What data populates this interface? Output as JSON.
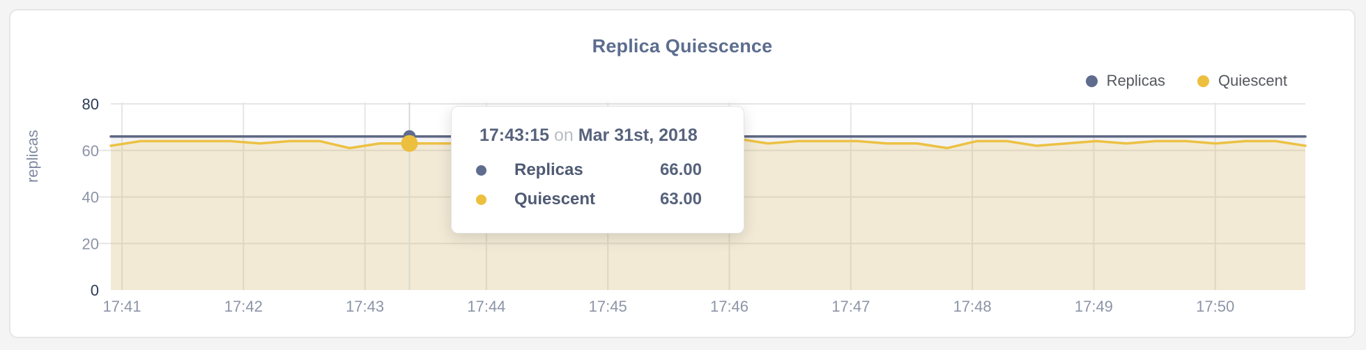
{
  "theme": {
    "page_background": "#f4f4f5",
    "card_background": "#ffffff",
    "grid_color": "#e6e6e4",
    "crosshair_color": "#d8d8d6",
    "axis_label_minor": "#8b94a7",
    "axis_label_major": "#2b3a55",
    "title_color": "#5c6d8e"
  },
  "chart_data": {
    "type": "area",
    "title": "Replica Quiescence",
    "ylabel": "replicas",
    "ylim": [
      0,
      80
    ],
    "grid": true,
    "legend_position": "top-right",
    "y_ticks": [
      {
        "label": "0",
        "value": 0,
        "major": true
      },
      {
        "label": "20",
        "value": 20,
        "major": false
      },
      {
        "label": "40",
        "value": 40,
        "major": false
      },
      {
        "label": "60",
        "value": 60,
        "major": false
      },
      {
        "label": "80",
        "value": 80,
        "major": true
      }
    ],
    "x_ticks": [
      "17:41",
      "17:42",
      "17:43",
      "17:44",
      "17:45",
      "17:46",
      "17:47",
      "17:48",
      "17:49",
      "17:50"
    ],
    "series": [
      {
        "name": "Replicas",
        "color": "#5d6784",
        "fill": "rgba(96,108,140,0.08)",
        "values": [
          66,
          66,
          66,
          66,
          66,
          66,
          66,
          66,
          66,
          66,
          66,
          66,
          66,
          66,
          66,
          66,
          66,
          66,
          66,
          66,
          66,
          66,
          66,
          66,
          66,
          66,
          66,
          66,
          66,
          66,
          66,
          66,
          66,
          66,
          66,
          66,
          66,
          66,
          66,
          66,
          66
        ]
      },
      {
        "name": "Quiescent",
        "color": "#ecc143",
        "fill": "rgba(236,193,67,0.18)",
        "values": [
          62,
          64,
          64,
          64,
          64,
          63,
          64,
          64,
          61,
          63,
          63,
          63,
          63,
          64,
          63,
          63,
          64,
          63,
          63,
          63,
          64,
          65,
          63,
          64,
          64,
          64,
          63,
          63,
          61,
          64,
          64,
          62,
          63,
          64,
          63,
          64,
          64,
          63,
          64,
          64,
          62
        ]
      }
    ],
    "hover": {
      "index": 10,
      "time": "17:43:15",
      "connector": "on",
      "date": "Mar 31st, 2018",
      "rows": [
        {
          "name": "Replicas",
          "value": "66.00",
          "color": "#606c8e"
        },
        {
          "name": "Quiescent",
          "value": "63.00",
          "color": "#ecbf3e"
        }
      ]
    }
  }
}
